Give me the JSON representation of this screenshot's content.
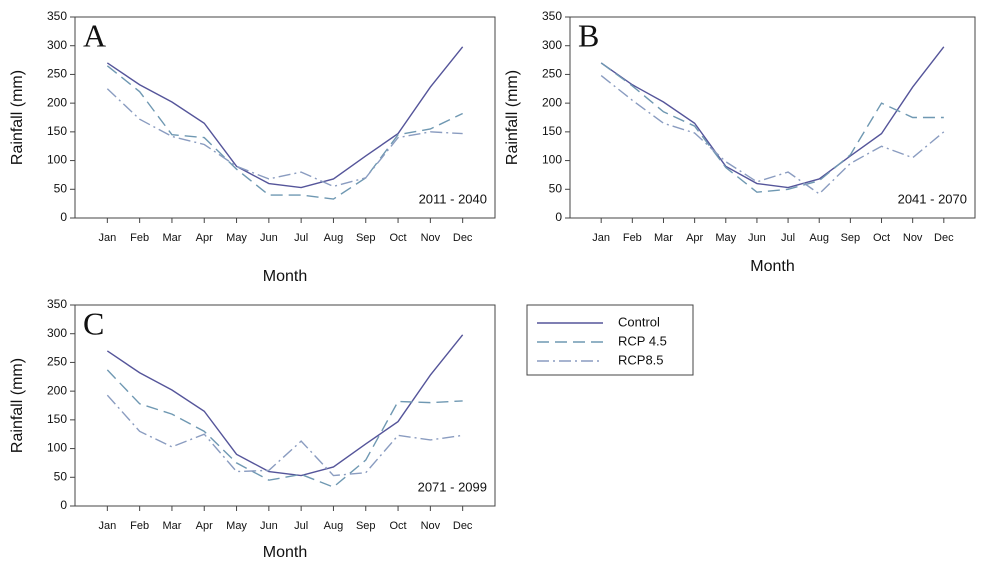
{
  "chart_data": [
    {
      "type": "line",
      "annotation": "A",
      "period": "2011 - 2040",
      "xlabel": "Month",
      "ylabel": "Rainfall (mm)",
      "categories": [
        "Jan",
        "Feb",
        "Mar",
        "Apr",
        "May",
        "Jun",
        "Jul",
        "Aug",
        "Sep",
        "Oct",
        "Nov",
        "Dec"
      ],
      "ylim": [
        0,
        350
      ],
      "yticks": [
        0,
        50,
        100,
        150,
        200,
        250,
        300,
        350
      ],
      "series": [
        {
          "name": "Control",
          "color": "#55559a",
          "dash": "solid",
          "values": [
            270,
            232,
            202,
            165,
            90,
            60,
            53,
            68,
            108,
            147,
            228,
            298
          ]
        },
        {
          "name": "RCP 4.5",
          "color": "#6f98b2",
          "dash": "dashed",
          "values": [
            265,
            220,
            145,
            140,
            85,
            40,
            40,
            33,
            70,
            145,
            155,
            182
          ]
        },
        {
          "name": "RCP8.5",
          "color": "#8a9cc0",
          "dash": "dashdot",
          "values": [
            225,
            172,
            142,
            128,
            90,
            68,
            80,
            55,
            70,
            140,
            150,
            147
          ]
        }
      ]
    },
    {
      "type": "line",
      "annotation": "B",
      "period": "2041 - 2070",
      "xlabel": "Month",
      "ylabel": "Rainfall (mm)",
      "categories": [
        "Jan",
        "Feb",
        "Mar",
        "Apr",
        "May",
        "Jun",
        "Jul",
        "Aug",
        "Sep",
        "Oct",
        "Nov",
        "Dec"
      ],
      "ylim": [
        0,
        350
      ],
      "yticks": [
        0,
        50,
        100,
        150,
        200,
        250,
        300,
        350
      ],
      "series": [
        {
          "name": "Control",
          "color": "#55559a",
          "dash": "solid",
          "values": [
            270,
            232,
            202,
            165,
            90,
            60,
            53,
            68,
            108,
            147,
            228,
            298
          ]
        },
        {
          "name": "RCP 4.5",
          "color": "#6f98b2",
          "dash": "dashed",
          "values": [
            270,
            230,
            185,
            160,
            88,
            45,
            50,
            65,
            110,
            200,
            175,
            175
          ]
        },
        {
          "name": "RCP8.5",
          "color": "#8a9cc0",
          "dash": "dashdot",
          "values": [
            248,
            205,
            165,
            148,
            98,
            63,
            80,
            42,
            95,
            125,
            105,
            150
          ]
        }
      ]
    },
    {
      "type": "line",
      "annotation": "C",
      "period": "2071 - 2099",
      "xlabel": "Month",
      "ylabel": "Rainfall (mm)",
      "categories": [
        "Jan",
        "Feb",
        "Mar",
        "Apr",
        "May",
        "Jun",
        "Jul",
        "Aug",
        "Sep",
        "Oct",
        "Nov",
        "Dec"
      ],
      "ylim": [
        0,
        350
      ],
      "yticks": [
        0,
        50,
        100,
        150,
        200,
        250,
        300,
        350
      ],
      "series": [
        {
          "name": "Control",
          "color": "#55559a",
          "dash": "solid",
          "values": [
            270,
            232,
            202,
            165,
            90,
            60,
            53,
            68,
            108,
            147,
            228,
            298
          ]
        },
        {
          "name": "RCP 4.5",
          "color": "#6f98b2",
          "dash": "dashed",
          "values": [
            237,
            178,
            160,
            130,
            75,
            45,
            55,
            33,
            80,
            182,
            180,
            183
          ]
        },
        {
          "name": "RCP8.5",
          "color": "#8a9cc0",
          "dash": "dashdot",
          "values": [
            193,
            130,
            103,
            125,
            60,
            62,
            113,
            53,
            58,
            123,
            115,
            123
          ]
        }
      ]
    }
  ]
}
